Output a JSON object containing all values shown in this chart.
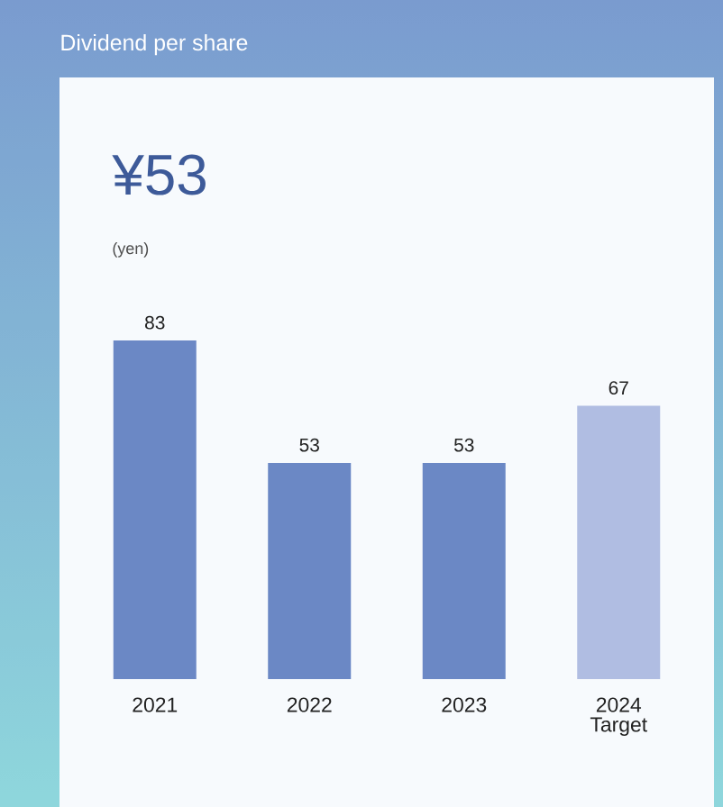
{
  "chart_data": {
    "type": "bar",
    "title": "Dividend per share",
    "subtitle": "¥53",
    "annotations": [
      "(yen)"
    ],
    "categories": [
      "2021",
      "2022",
      "2023",
      "2024 Target"
    ],
    "values": [
      83,
      53,
      53,
      67
    ],
    "colors": [
      "#6b88c5",
      "#6b88c5",
      "#6b88c5",
      "#b0bde2"
    ],
    "data_labels": true
  }
}
